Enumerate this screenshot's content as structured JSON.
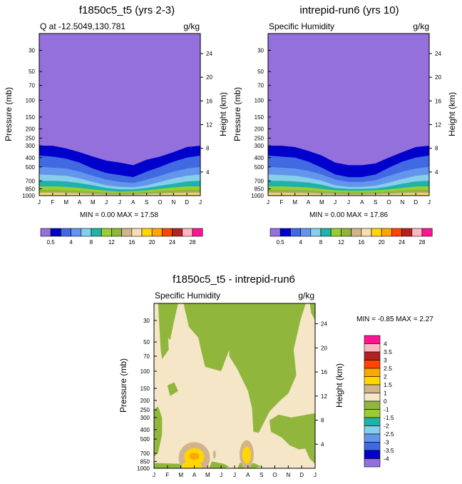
{
  "colors": {
    "background": "#9370DB",
    "levels": [
      "#9370DB",
      "#0000CD",
      "#4169E1",
      "#6495ED",
      "#87CEEB",
      "#20B2AA",
      "#9ACD32",
      "#8DB63A",
      "#D2B48C",
      "#F5DEB3",
      "#FFD700",
      "#FFA500",
      "#FF4500",
      "#B22222",
      "#FFB6C1",
      "#FF1493"
    ],
    "diff_levels": [
      "#9370DB",
      "#0000CD",
      "#4169E1",
      "#6495ED",
      "#87CEEB",
      "#20B2AA",
      "#9ACD32",
      "#90B73C",
      "#F5E6C8",
      "#D2B48C",
      "#FFD700",
      "#FFA500",
      "#FF4500",
      "#B22222",
      "#FFB6C1",
      "#FF1493"
    ]
  },
  "chart_data": [
    {
      "type": "contour",
      "title": "f1850c5_t5 (yrs 2-3)",
      "left_label": "Q at -12.5049,130.781",
      "right_label": "g/kg",
      "ylabel": "Pressure (mb)",
      "ylabel2": "Height (km)",
      "x_ticks": [
        "J",
        "F",
        "M",
        "A",
        "M",
        "J",
        "J",
        "A",
        "S",
        "O",
        "N",
        "D",
        "J"
      ],
      "y_ticks": [
        30,
        50,
        70,
        100,
        150,
        200,
        250,
        300,
        400,
        500,
        700,
        850,
        1000
      ],
      "y2_ticks": [
        24,
        20,
        16,
        12,
        8,
        4
      ],
      "ylim": [
        1000,
        20
      ],
      "stats": "MIN =   0.00 MAX =  17.58",
      "min": 0.0,
      "max": 17.58,
      "bands_top_mb": [
        [
          300,
          300,
          320,
          350,
          390,
          430,
          450,
          480,
          420,
          390,
          350,
          310,
          300
        ],
        [
          380,
          390,
          410,
          450,
          520,
          580,
          610,
          640,
          560,
          500,
          440,
          400,
          380
        ],
        [
          500,
          510,
          520,
          560,
          620,
          680,
          720,
          740,
          680,
          620,
          560,
          520,
          500
        ],
        [
          600,
          610,
          620,
          660,
          720,
          780,
          810,
          820,
          780,
          720,
          660,
          620,
          600
        ],
        [
          700,
          700,
          710,
          740,
          780,
          830,
          860,
          860,
          830,
          790,
          750,
          710,
          700
        ],
        [
          800,
          800,
          810,
          830,
          860,
          890,
          910,
          900,
          880,
          850,
          820,
          800,
          800
        ],
        [
          870,
          870,
          880,
          890,
          910,
          930,
          940,
          930,
          920,
          900,
          880,
          870,
          870
        ],
        [
          920,
          920,
          925,
          935,
          950,
          960,
          965,
          960,
          955,
          940,
          930,
          920,
          920
        ],
        [
          950,
          950,
          955,
          965,
          975,
          985,
          990,
          985,
          975,
          965,
          955,
          950,
          950
        ],
        [
          975,
          975,
          978,
          985,
          992,
          998,
          1000,
          998,
          992,
          985,
          978,
          975,
          975
        ]
      ]
    },
    {
      "type": "contour",
      "title": "intrepid-run6 (yrs 10)",
      "left_label": "Specific Humidity",
      "right_label": "g/kg",
      "ylabel": "Pressure (mb)",
      "ylabel2": "Height (km)",
      "x_ticks": [
        "J",
        "F",
        "M",
        "A",
        "M",
        "J",
        "J",
        "A",
        "S",
        "O",
        "N",
        "D",
        "J"
      ],
      "y_ticks": [
        30,
        50,
        70,
        100,
        150,
        200,
        250,
        300,
        400,
        500,
        700,
        850,
        1000
      ],
      "y2_ticks": [
        24,
        20,
        16,
        12,
        8,
        4
      ],
      "ylim": [
        1000,
        20
      ],
      "stats": "MIN =   0.00 MAX =  17.86",
      "min": 0.0,
      "max": 17.86,
      "bands_top_mb": [
        [
          300,
          300,
          310,
          340,
          380,
          450,
          480,
          480,
          460,
          400,
          350,
          310,
          300
        ],
        [
          380,
          390,
          400,
          440,
          510,
          600,
          640,
          640,
          600,
          510,
          440,
          400,
          380
        ],
        [
          500,
          510,
          520,
          550,
          600,
          680,
          720,
          720,
          690,
          620,
          560,
          520,
          500
        ],
        [
          600,
          610,
          620,
          650,
          700,
          780,
          810,
          810,
          790,
          730,
          670,
          620,
          600
        ],
        [
          700,
          700,
          710,
          730,
          770,
          830,
          850,
          850,
          840,
          800,
          750,
          710,
          700
        ],
        [
          800,
          800,
          810,
          820,
          850,
          880,
          890,
          890,
          880,
          860,
          830,
          800,
          800
        ],
        [
          870,
          870,
          875,
          885,
          900,
          920,
          930,
          930,
          920,
          905,
          885,
          870,
          870
        ],
        [
          920,
          920,
          925,
          930,
          940,
          955,
          960,
          960,
          955,
          945,
          930,
          920,
          920
        ],
        [
          950,
          950,
          952,
          960,
          970,
          980,
          985,
          985,
          978,
          968,
          958,
          950,
          950
        ],
        [
          975,
          975,
          978,
          982,
          988,
          995,
          998,
          998,
          994,
          988,
          980,
          975,
          975
        ]
      ]
    },
    {
      "type": "contour",
      "title": "f1850c5_t5 - intrepid-run6",
      "left_label": "Specific Humidity",
      "right_label": "g/kg",
      "ylabel": "Pressure (mb)",
      "ylabel2": "Height (km)",
      "x_ticks": [
        "J",
        "F",
        "M",
        "A",
        "M",
        "J",
        "J",
        "A",
        "S",
        "O",
        "N",
        "D",
        "J"
      ],
      "y_ticks": [
        30,
        50,
        70,
        100,
        150,
        200,
        250,
        300,
        400,
        500,
        700,
        850,
        1000
      ],
      "y2_ticks": [
        24,
        20,
        16,
        12,
        8,
        4
      ],
      "ylim": [
        1000,
        20
      ],
      "stats": "MIN =  -0.85 MAX =   2.27",
      "min": -0.85,
      "max": 2.27,
      "levels": [
        4,
        3.5,
        3,
        2.5,
        2,
        1.5,
        1,
        0,
        -1,
        -1.5,
        -2,
        -2.5,
        -3,
        -3.5,
        -4
      ]
    }
  ],
  "colorbar": {
    "labels": [
      "0.5",
      "4",
      "8",
      "12",
      "16",
      "20",
      "24",
      "28"
    ]
  }
}
